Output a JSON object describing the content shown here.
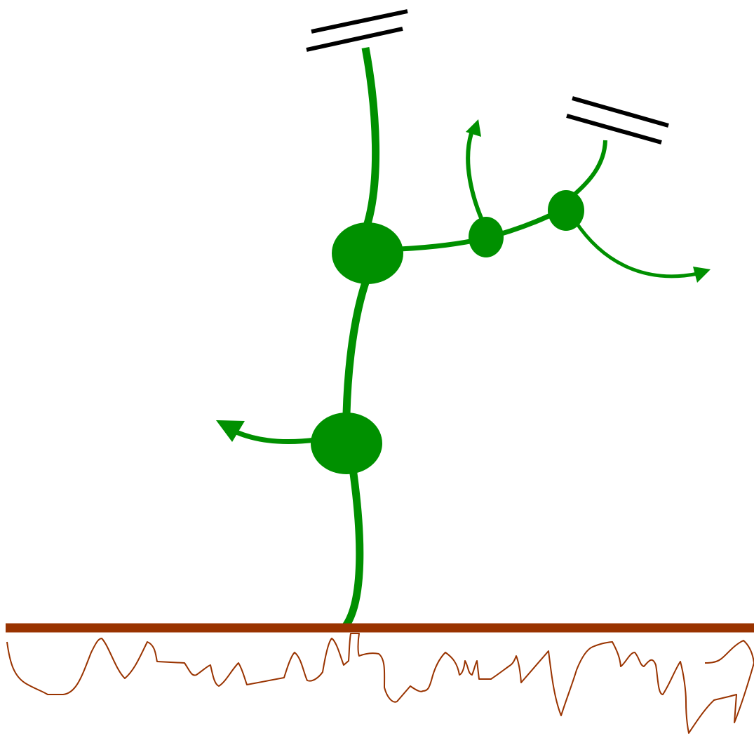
{
  "diagram": {
    "description_text": "",
    "colors": {
      "stem": "#009000",
      "node": "#009000",
      "ground": "#993300",
      "roots": "#993300",
      "terminal_cap": "#000000",
      "background": "#ffffff"
    },
    "elements": {
      "ground_line": "ground-line",
      "roots": "roots-outline",
      "stem_main": "main-stem",
      "branch_right": "right-branch",
      "growing_tips": [
        "left-tip-arrow",
        "upper-tip-arrow",
        "right-tip-arrow"
      ],
      "terminated_tips": [
        "top-cap-icon",
        "right-cap-icon"
      ],
      "nodes": [
        "node-lower",
        "node-upper",
        "node-branch-1",
        "node-branch-2"
      ]
    }
  }
}
